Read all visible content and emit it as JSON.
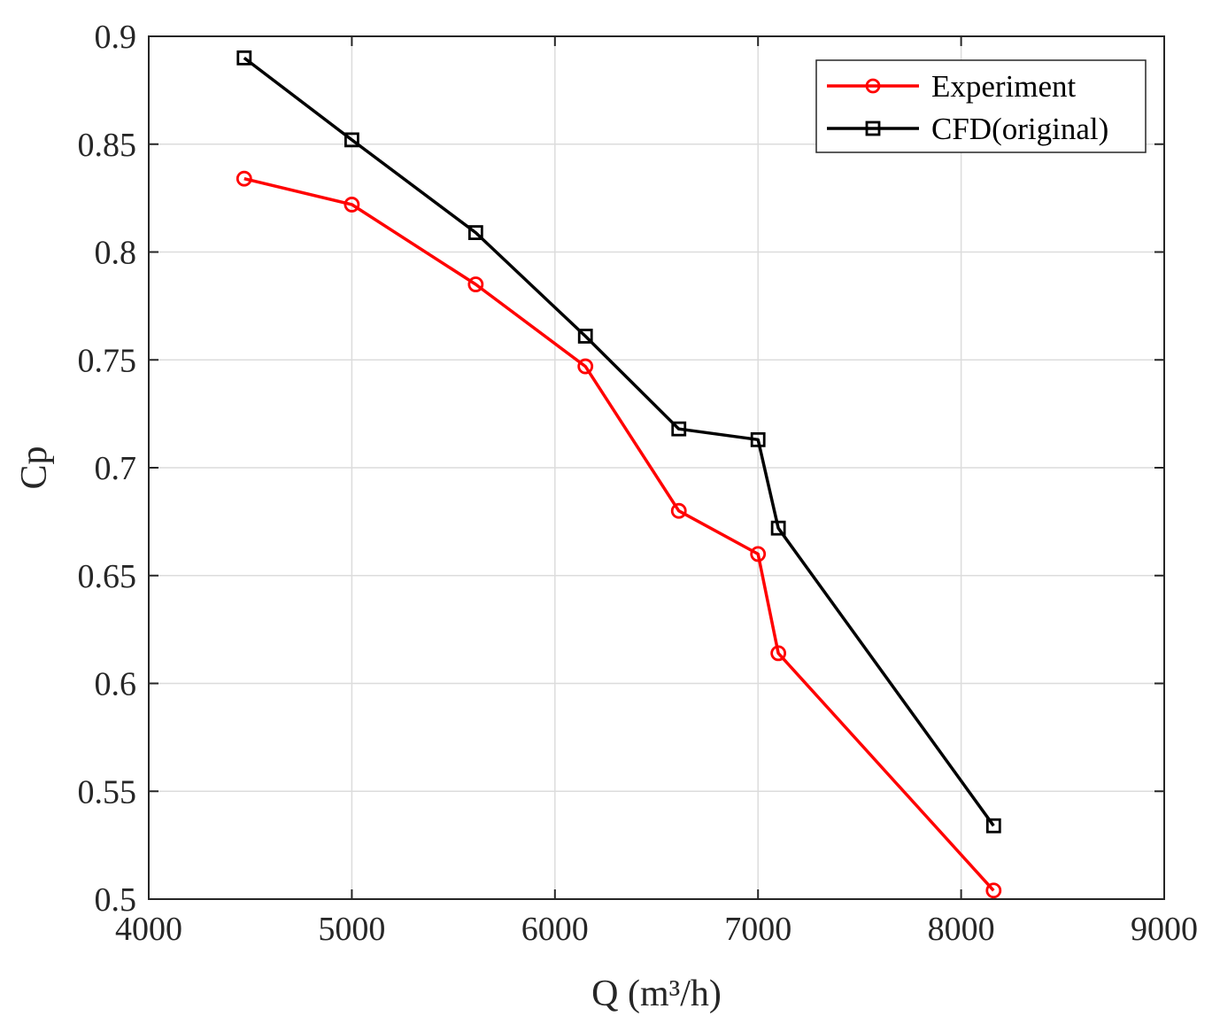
{
  "chart_data": {
    "type": "line",
    "title": "",
    "xlabel": "Q (m³/h)",
    "ylabel": "Cp",
    "xlim": [
      4000,
      9000
    ],
    "ylim": [
      0.5,
      0.9
    ],
    "xticks": [
      4000,
      5000,
      6000,
      7000,
      8000,
      9000
    ],
    "yticks": [
      0.5,
      0.55,
      0.6,
      0.65,
      0.7,
      0.75,
      0.8,
      0.85,
      0.9
    ],
    "grid": true,
    "legend_position": "top-right",
    "series": [
      {
        "name": "Experiment",
        "color": "#ff0000",
        "marker": "circle",
        "x": [
          4470,
          5000,
          5610,
          6150,
          6610,
          7000,
          7100,
          8160
        ],
        "y": [
          0.834,
          0.822,
          0.785,
          0.747,
          0.68,
          0.66,
          0.614,
          0.504
        ]
      },
      {
        "name": "CFD(original)",
        "color": "#000000",
        "marker": "square",
        "x": [
          4470,
          5000,
          5610,
          6150,
          6610,
          7000,
          7100,
          8160
        ],
        "y": [
          0.89,
          0.852,
          0.809,
          0.761,
          0.718,
          0.713,
          0.672,
          0.534
        ]
      }
    ]
  }
}
